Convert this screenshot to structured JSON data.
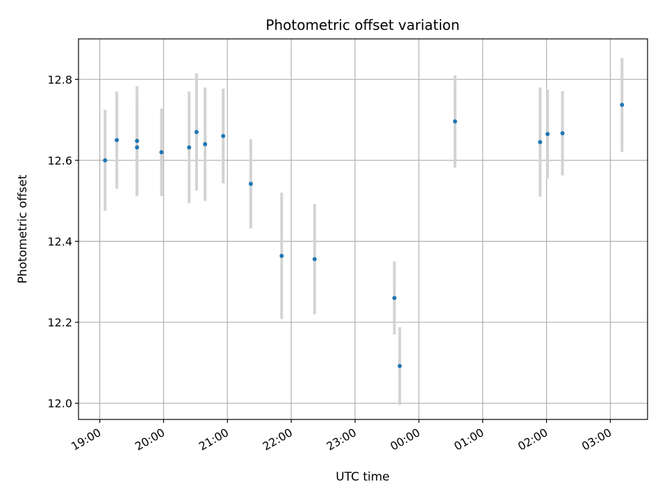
{
  "chart_data": {
    "type": "scatter",
    "title": "Photometric offset variation",
    "xlabel": "UTC time",
    "ylabel": "Photometric offset",
    "x_ticks": [
      "19:00",
      "20:00",
      "21:00",
      "22:00",
      "23:00",
      "00:00",
      "01:00",
      "02:00",
      "03:00"
    ],
    "y_ticks": [
      "12.0",
      "12.2",
      "12.4",
      "12.6",
      "12.8"
    ],
    "xlim": [
      "18:40",
      "03:35"
    ],
    "ylim": [
      11.96,
      12.9
    ],
    "grid": true,
    "point_color": "#1f77b4",
    "errorbar_color": "#d3d3d3",
    "points": [
      {
        "time": "19:05",
        "y": 12.6,
        "err": 0.125
      },
      {
        "time": "19:16",
        "y": 12.65,
        "err": 0.12
      },
      {
        "time": "19:35",
        "y": 12.648,
        "err": 0.135
      },
      {
        "time": "19:35",
        "y": 12.632,
        "err": 0.12
      },
      {
        "time": "19:58",
        "y": 12.62,
        "err": 0.108
      },
      {
        "time": "20:24",
        "y": 12.632,
        "err": 0.138
      },
      {
        "time": "20:31",
        "y": 12.67,
        "err": 0.145
      },
      {
        "time": "20:39",
        "y": 12.64,
        "err": 0.14
      },
      {
        "time": "20:56",
        "y": 12.66,
        "err": 0.117
      },
      {
        "time": "21:22",
        "y": 12.542,
        "err": 0.11
      },
      {
        "time": "21:51",
        "y": 12.364,
        "err": 0.156
      },
      {
        "time": "22:22",
        "y": 12.356,
        "err": 0.136
      },
      {
        "time": "23:37",
        "y": 12.26,
        "err": 0.09
      },
      {
        "time": "23:42",
        "y": 12.092,
        "err": 0.096
      },
      {
        "time": "00:34",
        "y": 12.696,
        "err": 0.114
      },
      {
        "time": "01:54",
        "y": 12.645,
        "err": 0.135
      },
      {
        "time": "02:01",
        "y": 12.665,
        "err": 0.11
      },
      {
        "time": "02:15",
        "y": 12.667,
        "err": 0.104
      },
      {
        "time": "03:11",
        "y": 12.737,
        "err": 0.116
      }
    ]
  }
}
